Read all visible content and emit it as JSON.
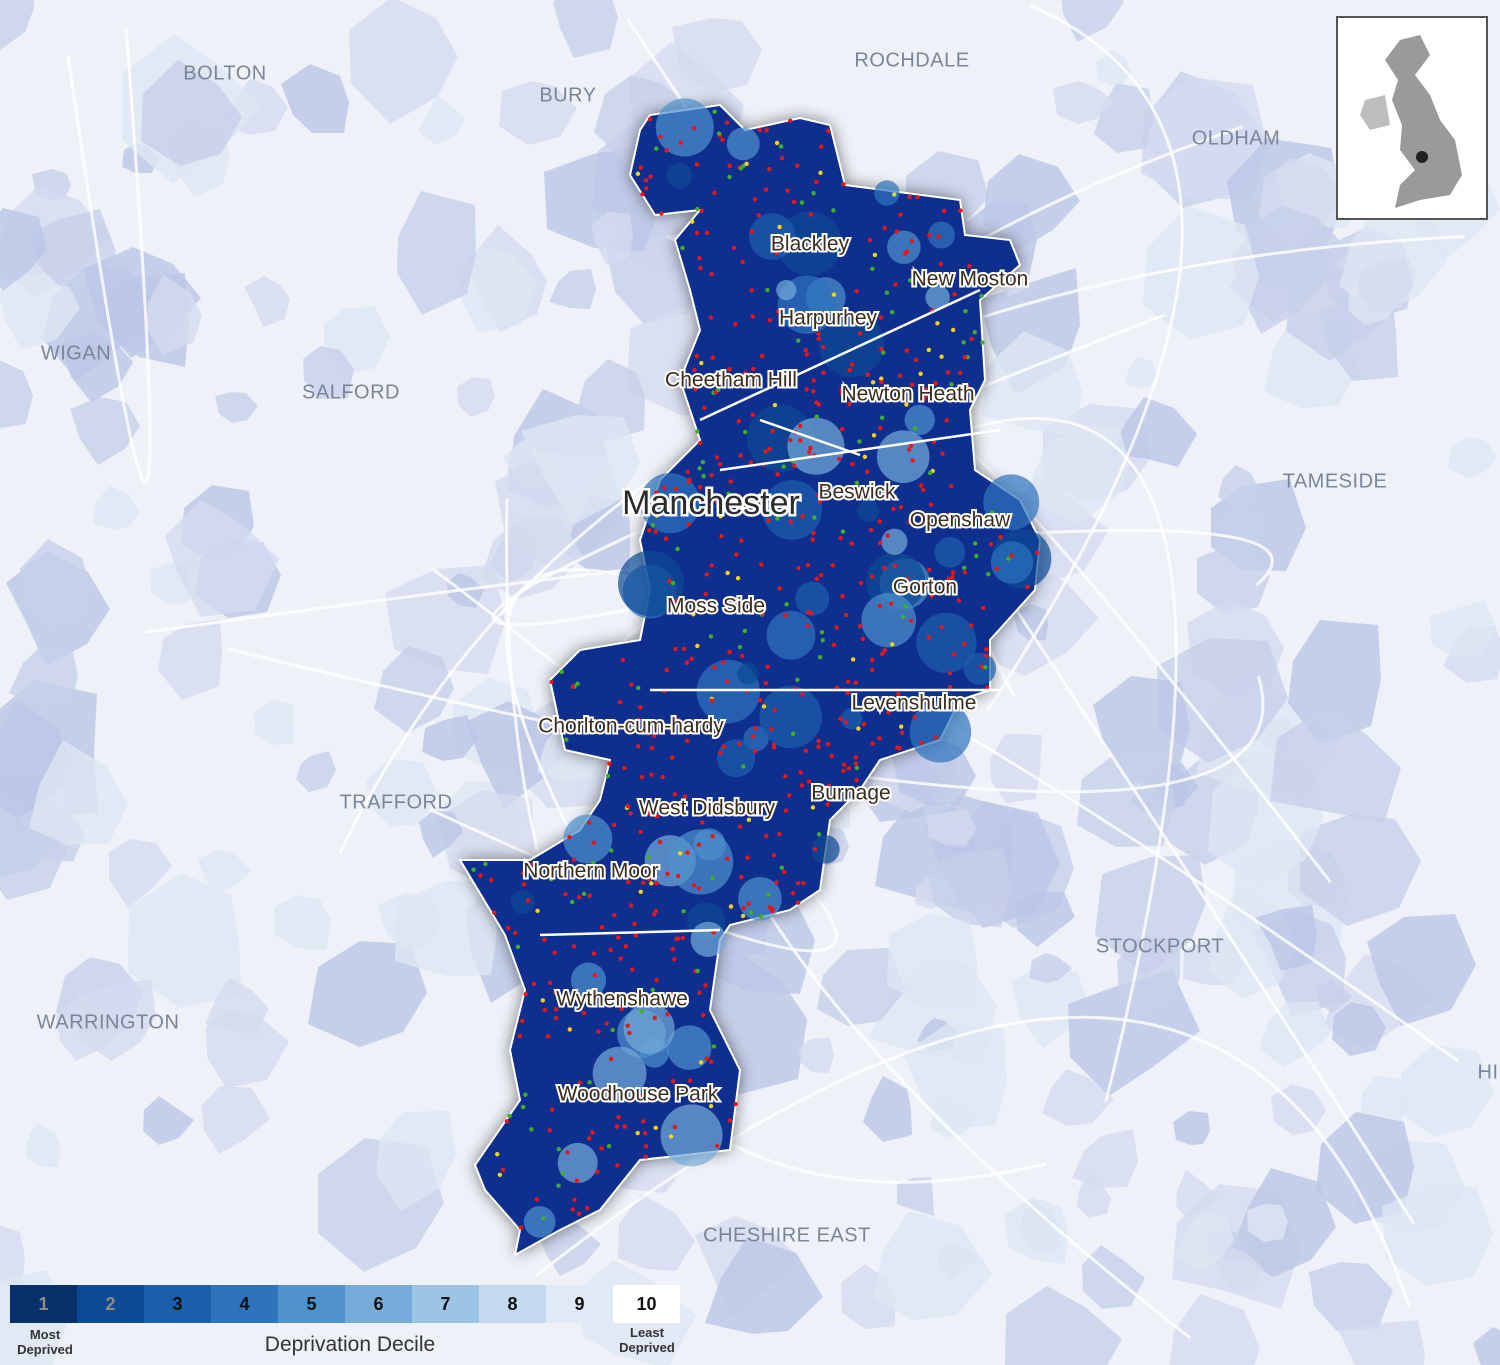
{
  "map": {
    "regions": [
      "BOLTON",
      "BURY",
      "ROCHDALE",
      "OLDHAM",
      "WIGAN",
      "SALFORD",
      "TAMESIDE",
      "TRAFFORD",
      "STOCKPORT",
      "WARRINGTON",
      "CHESHIRE EAST",
      "HI"
    ],
    "city": "Manchester",
    "places": [
      "Blackley",
      "New Moston",
      "Harpurhey",
      "Cheetham Hill",
      "Newton Heath",
      "Beswick",
      "Openshaw",
      "Gorton",
      "Moss Side",
      "Levenshulme",
      "Chorlton-cum-hardy",
      "Burnage",
      "West Didsbury",
      "Northern Moor",
      "Wythenshawe",
      "Woodhouse Park"
    ],
    "legend": {
      "title": "Deprivation Decile",
      "deciles": [
        1,
        2,
        3,
        4,
        5,
        6,
        7,
        8,
        9,
        10
      ],
      "colors": [
        "#08306b",
        "#0d4a94",
        "#1c5fab",
        "#2d74bd",
        "#4f92cc",
        "#75acd9",
        "#9cc4e4",
        "#c2d9ee",
        "#dfeaf6",
        "#ffffff"
      ],
      "low_label": "Most Deprived",
      "high_label": "Least Deprived"
    }
  }
}
